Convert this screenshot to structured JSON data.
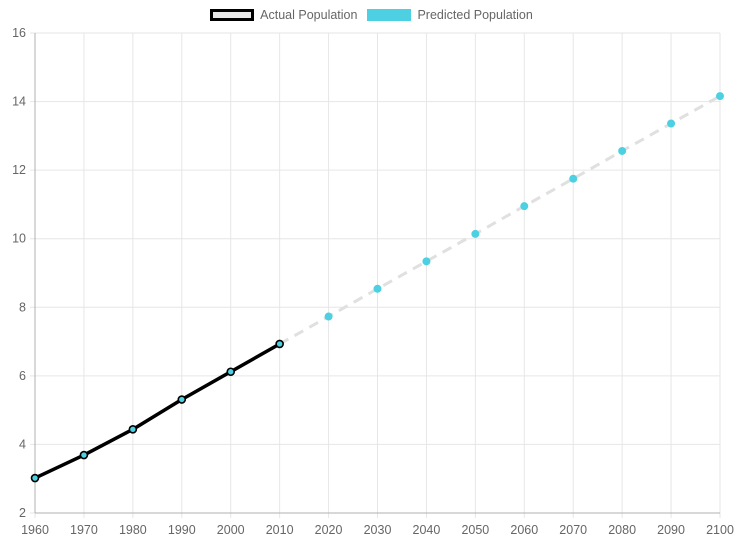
{
  "chart_data": {
    "type": "line",
    "legend_position": "top-center",
    "grid": true,
    "x": [
      1960,
      1970,
      1980,
      1990,
      2000,
      2010,
      2020,
      2030,
      2040,
      2050,
      2060,
      2070,
      2080,
      2090,
      2100
    ],
    "xlim": [
      1960,
      2100
    ],
    "ylim": [
      2,
      16
    ],
    "x_ticks": [
      "1960",
      "1970",
      "1980",
      "1990",
      "2000",
      "2010",
      "2020",
      "2030",
      "2040",
      "2050",
      "2060",
      "2070",
      "2080",
      "2090",
      "2100"
    ],
    "y_ticks": [
      "2",
      "4",
      "6",
      "8",
      "10",
      "12",
      "14",
      "16"
    ],
    "series": [
      {
        "name": "Actual Population",
        "color": "#000000",
        "points": [
          {
            "x": 1960,
            "y": 3.02
          },
          {
            "x": 1970,
            "y": 3.69
          },
          {
            "x": 1980,
            "y": 4.44
          },
          {
            "x": 1990,
            "y": 5.31
          },
          {
            "x": 2000,
            "y": 6.12
          },
          {
            "x": 2010,
            "y": 6.93
          }
        ]
      },
      {
        "name": "Predicted Population",
        "color": "#4dd0e1",
        "line_color": "#e0e0e0",
        "dashed": true,
        "points": [
          {
            "x": 2010,
            "y": 6.93
          },
          {
            "x": 2020,
            "y": 7.73
          },
          {
            "x": 2030,
            "y": 8.54
          },
          {
            "x": 2040,
            "y": 9.34
          },
          {
            "x": 2050,
            "y": 10.14
          },
          {
            "x": 2060,
            "y": 10.95
          },
          {
            "x": 2070,
            "y": 11.75
          },
          {
            "x": 2080,
            "y": 12.56
          },
          {
            "x": 2090,
            "y": 13.36
          },
          {
            "x": 2100,
            "y": 14.16
          }
        ]
      }
    ]
  }
}
